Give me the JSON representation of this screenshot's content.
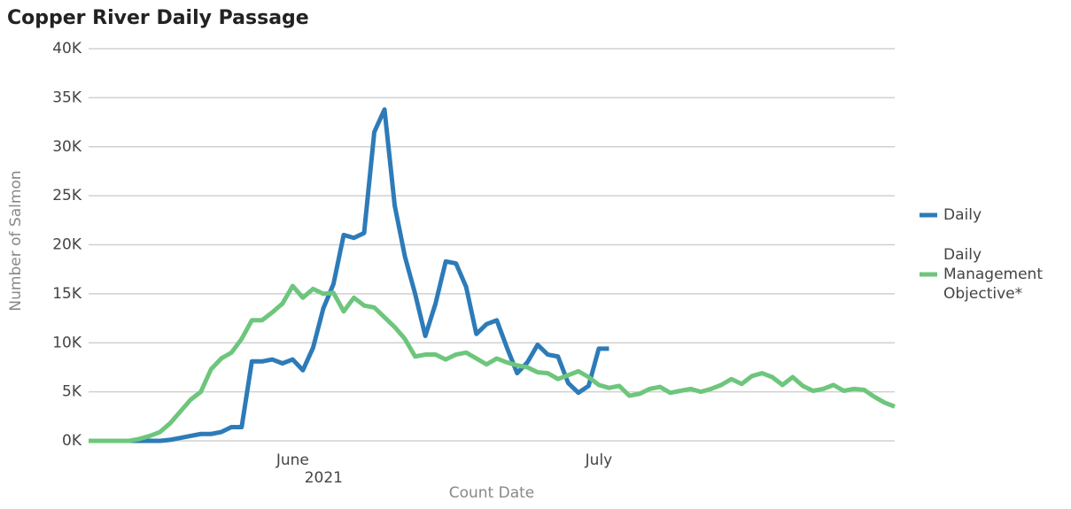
{
  "chart_data": {
    "type": "line",
    "title": "Copper River Daily Passage",
    "x_label": "Count Date",
    "x_sublabel": "2021",
    "y_label": "Number of Salmon",
    "categories": [
      null,
      null,
      null,
      null,
      null,
      null,
      null,
      null,
      null,
      null,
      null,
      null,
      null,
      null,
      null,
      null,
      null,
      null,
      null,
      null,
      "June",
      null,
      null,
      null,
      null,
      null,
      null,
      null,
      null,
      null,
      null,
      null,
      null,
      null,
      null,
      null,
      null,
      null,
      null,
      null,
      null,
      null,
      null,
      null,
      null,
      null,
      null,
      null,
      null,
      null,
      "July",
      null,
      null,
      null,
      null,
      null,
      null,
      null,
      null,
      null,
      null,
      null,
      null,
      null,
      null,
      null,
      null,
      null,
      null,
      null,
      null,
      null,
      null,
      null,
      null,
      null,
      null,
      null,
      null,
      null
    ],
    "series": [
      {
        "name": "Daily",
        "color": "#2d7bb8",
        "values": [
          0,
          0,
          0,
          0,
          0,
          0,
          0,
          0,
          100,
          300,
          500,
          700,
          700,
          900,
          1400,
          1400,
          8100,
          8100,
          8300,
          7900,
          8300,
          7200,
          9500,
          13500,
          16000,
          21000,
          20700,
          21200,
          31500,
          33800,
          24000,
          18800,
          15000,
          10700,
          14000,
          18300,
          18100,
          15700,
          10900,
          11900,
          12300,
          9500,
          6900,
          8000,
          9800,
          8800,
          8600,
          5900,
          4900,
          5600,
          9400,
          9400,
          null,
          null,
          null,
          null,
          null,
          null,
          null,
          null,
          null,
          null,
          null,
          null,
          null,
          null,
          null,
          null,
          null,
          null,
          null,
          null,
          null,
          null,
          null,
          null,
          null,
          null,
          null,
          null
        ]
      },
      {
        "name": "Daily Management Objective*",
        "color": "#6dc67c",
        "values": [
          0,
          0,
          0,
          0,
          0,
          200,
          500,
          900,
          1800,
          3000,
          4200,
          5000,
          7300,
          8400,
          9000,
          10400,
          12300,
          12300,
          13100,
          14000,
          15800,
          14600,
          15500,
          15000,
          15100,
          13200,
          14600,
          13800,
          13600,
          12600,
          11600,
          10400,
          8600,
          8800,
          8800,
          8300,
          8800,
          9000,
          8400,
          7800,
          8400,
          8000,
          7700,
          7500,
          7000,
          6900,
          6300,
          6700,
          7100,
          6500,
          5700,
          5400,
          5600,
          4600,
          4800,
          5300,
          5500,
          4900,
          5100,
          5300,
          5000,
          5300,
          5700,
          6300,
          5800,
          6600,
          6900,
          6500,
          5700,
          6500,
          5600,
          5100,
          5300,
          5700,
          5100,
          5300,
          5200,
          4500,
          3900,
          3500
        ]
      }
    ],
    "ylim": [
      0,
      40000
    ],
    "yticks": [
      {
        "value": 0,
        "label": "0K"
      },
      {
        "value": 5000,
        "label": "5K"
      },
      {
        "value": 10000,
        "label": "10K"
      },
      {
        "value": 15000,
        "label": "15K"
      },
      {
        "value": 20000,
        "label": "20K"
      },
      {
        "value": 25000,
        "label": "25K"
      },
      {
        "value": 30000,
        "label": "30K"
      },
      {
        "value": 35000,
        "label": "35K"
      },
      {
        "value": 40000,
        "label": "40K"
      }
    ],
    "grid": true,
    "legend": "right"
  }
}
